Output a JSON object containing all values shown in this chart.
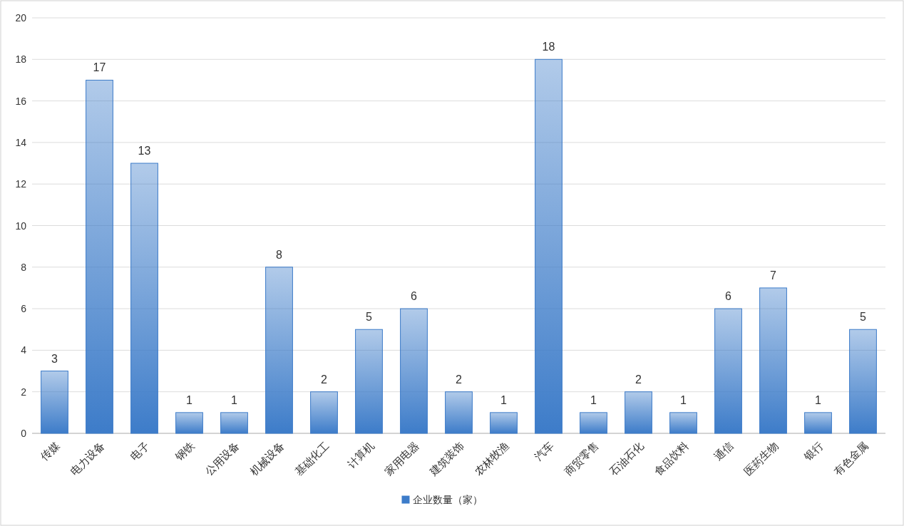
{
  "chart_data": {
    "type": "bar",
    "categories": [
      "传媒",
      "电力设备",
      "电子",
      "钢铁",
      "公用设备",
      "机械设备",
      "基础化工",
      "计算机",
      "家用电器",
      "建筑装饰",
      "农林牧渔",
      "汽车",
      "商贸零售",
      "石油石化",
      "食品饮料",
      "通信",
      "医药生物",
      "银行",
      "有色金属"
    ],
    "series": [
      {
        "name": "企业数量（家）",
        "color": "#3d7cc9",
        "values": [
          3,
          17,
          13,
          1,
          1,
          8,
          2,
          5,
          6,
          2,
          1,
          18,
          1,
          2,
          1,
          6,
          7,
          1,
          5
        ]
      }
    ],
    "ylim": [
      0,
      20
    ],
    "yticks": [
      0,
      2,
      4,
      6,
      8,
      10,
      12,
      14,
      16,
      18,
      20
    ],
    "grid": "y",
    "data_labels": true,
    "legend": "bottom"
  }
}
